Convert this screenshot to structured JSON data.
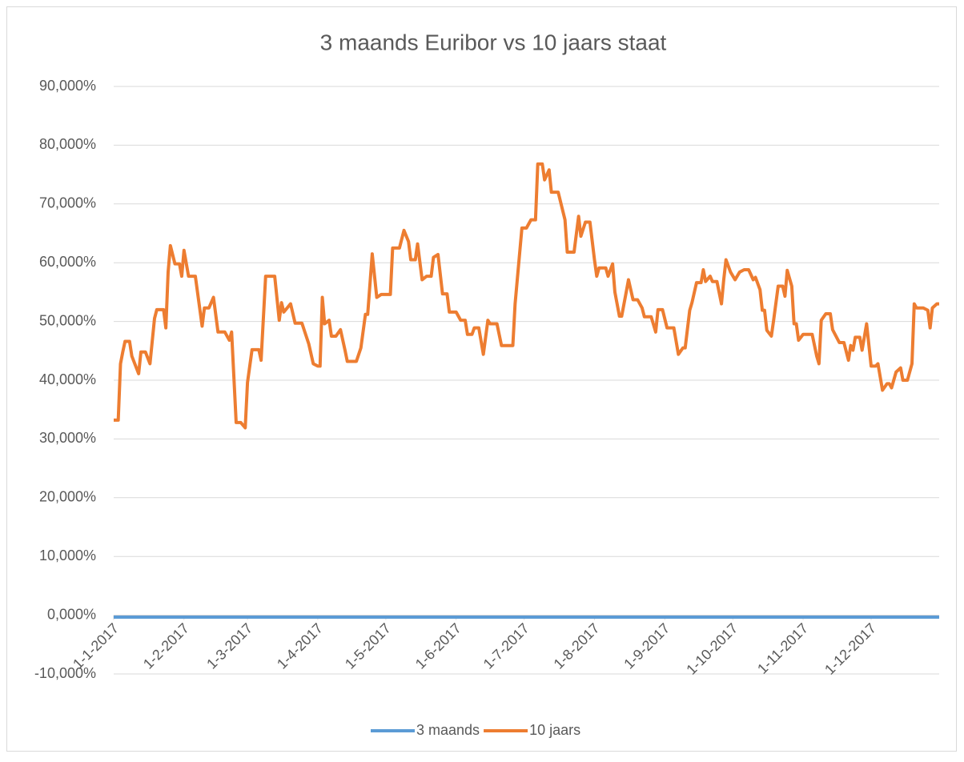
{
  "chart_data": {
    "type": "line",
    "title": "3 maands Euribor  vs 10 jaars staat",
    "xlim": [
      "2017-01-01",
      "2017-12-31"
    ],
    "xticks": [
      {
        "value": "2017-01-01",
        "label": "1-1-2017"
      },
      {
        "value": "2017-02-01",
        "label": "1-2-2017"
      },
      {
        "value": "2017-03-01",
        "label": "1-3-2017"
      },
      {
        "value": "2017-04-01",
        "label": "1-4-2017"
      },
      {
        "value": "2017-05-01",
        "label": "1-5-2017"
      },
      {
        "value": "2017-06-01",
        "label": "1-6-2017"
      },
      {
        "value": "2017-07-01",
        "label": "1-7-2017"
      },
      {
        "value": "2017-08-01",
        "label": "1-8-2017"
      },
      {
        "value": "2017-09-01",
        "label": "1-9-2017"
      },
      {
        "value": "2017-10-01",
        "label": "1-10-2017"
      },
      {
        "value": "2017-11-01",
        "label": "1-11-2017"
      },
      {
        "value": "2017-12-01",
        "label": "1-12-2017"
      }
    ],
    "ylim": [
      -10,
      90
    ],
    "yticks": [
      {
        "value": -10,
        "label": "-10,000%"
      },
      {
        "value": 0,
        "label": "0,000%"
      },
      {
        "value": 10,
        "label": "10,000%"
      },
      {
        "value": 20,
        "label": "20,000%"
      },
      {
        "value": 30,
        "label": "30,000%"
      },
      {
        "value": 40,
        "label": "40,000%"
      },
      {
        "value": 50,
        "label": "50,000%"
      },
      {
        "value": 60,
        "label": "60,000%"
      },
      {
        "value": 70,
        "label": "70,000%"
      },
      {
        "value": 80,
        "label": "80,000%"
      },
      {
        "value": 90,
        "label": "90,000%"
      }
    ],
    "grid": true,
    "legend": "bottom",
    "series": [
      {
        "name": "3 maands",
        "color": "#5b9bd5",
        "x": [
          "2017-01-01",
          "2017-02-01",
          "2017-03-01",
          "2017-04-01",
          "2017-05-01",
          "2017-06-01",
          "2017-07-01",
          "2017-08-01",
          "2017-09-01",
          "2017-10-01",
          "2017-11-01",
          "2017-12-01",
          "2017-12-31"
        ],
        "values": [
          -0.32,
          -0.33,
          -0.33,
          -0.33,
          -0.33,
          -0.33,
          -0.33,
          -0.33,
          -0.33,
          -0.33,
          -0.33,
          -0.33,
          -0.33
        ]
      },
      {
        "name": "10 jaars",
        "color": "#ed7d31",
        "x": [
          "2017-01-01",
          "2017-01-03",
          "2017-01-04",
          "2017-01-05",
          "2017-01-06",
          "2017-01-08",
          "2017-01-09",
          "2017-01-12",
          "2017-01-13",
          "2017-01-15",
          "2017-01-17",
          "2017-01-19",
          "2017-01-20",
          "2017-01-23",
          "2017-01-24",
          "2017-01-25",
          "2017-01-26",
          "2017-01-28",
          "2017-01-30",
          "2017-01-31",
          "2017-02-01",
          "2017-02-03",
          "2017-02-06",
          "2017-02-09",
          "2017-02-10",
          "2017-02-12",
          "2017-02-14",
          "2017-02-16",
          "2017-02-19",
          "2017-02-21",
          "2017-02-22",
          "2017-02-24",
          "2017-02-26",
          "2017-02-28",
          "2017-03-01",
          "2017-03-03",
          "2017-03-06",
          "2017-03-07",
          "2017-03-09",
          "2017-03-13",
          "2017-03-15",
          "2017-03-16",
          "2017-03-17",
          "2017-03-20",
          "2017-03-22",
          "2017-03-25",
          "2017-03-28",
          "2017-03-30",
          "2017-04-01",
          "2017-04-02",
          "2017-04-03",
          "2017-04-04",
          "2017-04-06",
          "2017-04-07",
          "2017-04-09",
          "2017-04-11",
          "2017-04-13",
          "2017-04-14",
          "2017-04-18",
          "2017-04-20",
          "2017-04-22",
          "2017-04-23",
          "2017-04-25",
          "2017-04-27",
          "2017-04-29",
          "2017-05-03",
          "2017-05-04",
          "2017-05-07",
          "2017-05-09",
          "2017-05-11",
          "2017-05-12",
          "2017-05-14",
          "2017-05-15",
          "2017-05-17",
          "2017-05-19",
          "2017-05-21",
          "2017-05-22",
          "2017-05-24",
          "2017-05-26",
          "2017-05-28",
          "2017-05-29",
          "2017-06-01",
          "2017-06-03",
          "2017-06-05",
          "2017-06-06",
          "2017-06-08",
          "2017-06-09",
          "2017-06-11",
          "2017-06-13",
          "2017-06-15",
          "2017-06-16",
          "2017-06-19",
          "2017-06-21",
          "2017-06-26",
          "2017-06-27",
          "2017-06-30",
          "2017-07-02",
          "2017-07-04",
          "2017-07-06",
          "2017-07-07",
          "2017-07-09",
          "2017-07-10",
          "2017-07-12",
          "2017-07-13",
          "2017-07-16",
          "2017-07-19",
          "2017-07-20",
          "2017-07-23",
          "2017-07-25",
          "2017-07-26",
          "2017-07-28",
          "2017-07-30",
          "2017-08-01",
          "2017-08-02",
          "2017-08-03",
          "2017-08-06",
          "2017-08-07",
          "2017-08-09",
          "2017-08-10",
          "2017-08-12",
          "2017-08-13",
          "2017-08-15",
          "2017-08-16",
          "2017-08-18",
          "2017-08-20",
          "2017-08-22",
          "2017-08-23",
          "2017-08-26",
          "2017-08-28",
          "2017-08-29",
          "2017-08-31",
          "2017-09-02",
          "2017-09-05",
          "2017-09-07",
          "2017-09-09",
          "2017-09-10",
          "2017-09-12",
          "2017-09-13",
          "2017-09-15",
          "2017-09-17",
          "2017-09-18",
          "2017-09-19",
          "2017-09-21",
          "2017-09-22",
          "2017-09-24",
          "2017-09-26",
          "2017-09-27",
          "2017-09-28",
          "2017-09-30",
          "2017-10-02",
          "2017-10-04",
          "2017-10-06",
          "2017-10-08",
          "2017-10-10",
          "2017-10-11",
          "2017-10-13",
          "2017-10-14",
          "2017-10-15",
          "2017-10-16",
          "2017-10-18",
          "2017-10-19",
          "2017-10-21",
          "2017-10-23",
          "2017-10-24",
          "2017-10-25",
          "2017-10-27",
          "2017-10-28",
          "2017-10-29",
          "2017-10-30",
          "2017-11-01",
          "2017-11-03",
          "2017-11-05",
          "2017-11-07",
          "2017-11-08",
          "2017-11-09",
          "2017-11-11",
          "2017-11-13",
          "2017-11-14",
          "2017-11-17",
          "2017-11-19",
          "2017-11-21",
          "2017-11-22",
          "2017-11-23",
          "2017-11-24",
          "2017-11-26",
          "2017-11-27",
          "2017-11-29",
          "2017-12-01",
          "2017-12-03",
          "2017-12-04",
          "2017-12-06",
          "2017-12-08",
          "2017-12-09",
          "2017-12-10",
          "2017-12-12",
          "2017-12-14",
          "2017-12-15",
          "2017-12-17",
          "2017-12-19",
          "2017-12-20",
          "2017-12-21",
          "2017-12-24",
          "2017-12-26",
          "2017-12-27",
          "2017-12-28",
          "2017-12-30",
          "2017-12-31"
        ],
        "values": [
          33.2,
          33.2,
          42.8,
          44.8,
          46.6,
          46.6,
          44.1,
          41.1,
          44.8,
          44.8,
          42.8,
          50.5,
          52.0,
          52.0,
          48.9,
          58.4,
          62.9,
          59.8,
          59.8,
          57.7,
          62.1,
          57.7,
          57.7,
          49.2,
          52.3,
          52.3,
          54.1,
          48.2,
          48.2,
          46.8,
          48.2,
          32.8,
          32.8,
          31.9,
          39.6,
          45.2,
          45.2,
          43.4,
          57.7,
          57.7,
          50.2,
          53.2,
          51.6,
          53.0,
          49.7,
          49.7,
          46.2,
          42.8,
          42.4,
          42.4,
          54.1,
          49.6,
          50.2,
          47.5,
          47.5,
          48.6,
          45.1,
          43.2,
          43.2,
          45.5,
          51.2,
          51.2,
          61.5,
          54.1,
          54.6,
          54.6,
          62.5,
          62.5,
          65.5,
          63.6,
          60.5,
          60.5,
          63.2,
          57.1,
          57.7,
          57.7,
          60.9,
          61.4,
          54.7,
          54.7,
          51.6,
          51.6,
          50.2,
          50.2,
          47.8,
          47.8,
          48.9,
          48.9,
          44.4,
          50.2,
          49.6,
          49.6,
          45.9,
          45.9,
          53.0,
          65.9,
          65.9,
          67.3,
          67.3,
          76.8,
          76.8,
          74.1,
          75.8,
          72.0,
          72.0,
          67.3,
          61.8,
          61.8,
          67.9,
          64.5,
          66.9,
          66.9,
          60.5,
          57.7,
          59.1,
          59.1,
          57.7,
          59.8,
          55.0,
          50.9,
          50.9,
          55.0,
          57.1,
          53.7,
          53.7,
          52.3,
          50.8,
          50.8,
          48.2,
          52.0,
          52.0,
          48.9,
          48.9,
          44.4,
          45.5,
          45.5,
          51.9,
          53.2,
          56.6,
          56.6,
          58.8,
          56.8,
          57.7,
          56.8,
          56.8,
          53.0,
          57.1,
          60.5,
          58.4,
          57.1,
          58.4,
          58.8,
          58.8,
          57.1,
          57.5,
          55.4,
          51.9,
          51.9,
          48.5,
          47.5,
          50.2,
          56.0,
          56.0,
          54.3,
          58.7,
          56.0,
          49.6,
          49.6,
          46.8,
          47.8,
          47.8,
          47.8,
          44.1,
          42.8,
          50.2,
          51.3,
          51.3,
          48.6,
          46.4,
          46.4,
          43.4,
          45.9,
          45.1,
          47.3,
          47.3,
          45.1,
          49.6,
          42.4,
          42.4,
          42.8,
          38.3,
          39.4,
          39.4,
          38.7,
          41.4,
          42.1,
          40.0,
          40.0,
          42.8,
          53.0,
          52.3,
          52.3,
          51.9,
          48.9,
          52.3,
          53.0,
          53.0
        ]
      }
    ]
  }
}
